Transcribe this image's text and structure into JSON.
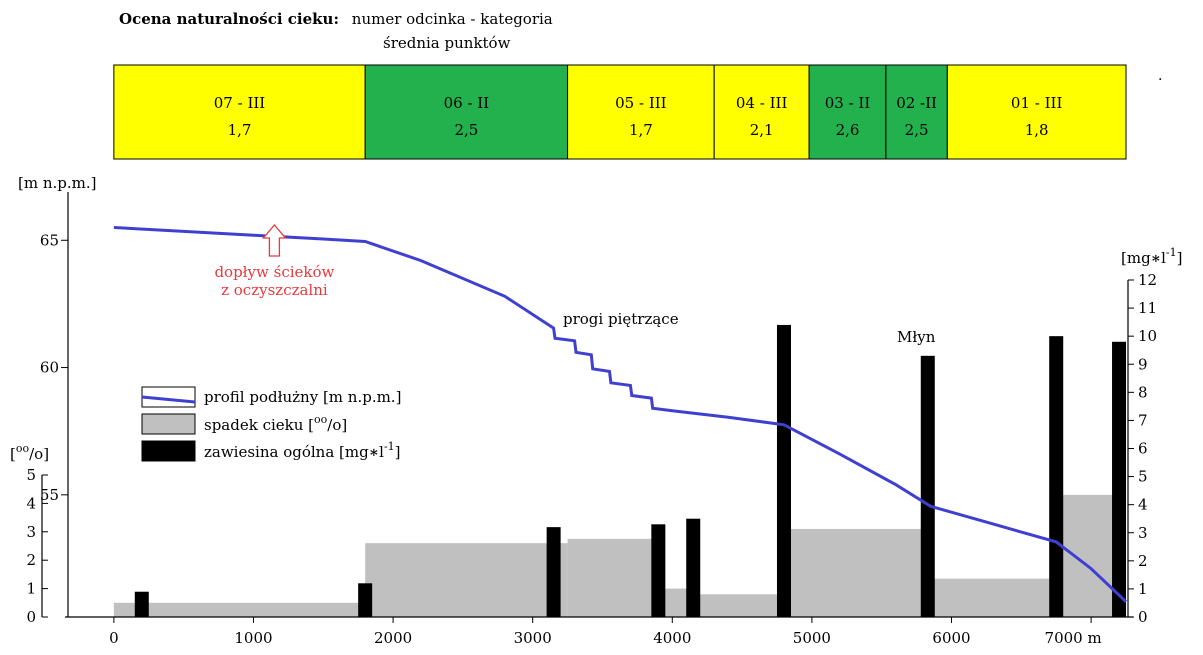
{
  "header": {
    "title": "Ocena naturalności cieku:",
    "legend_line1": "numer odcinka - kategoria",
    "legend_line2": "średnia punktów",
    "trailing_mark": "."
  },
  "colors": {
    "cat_III": "#ffff00",
    "cat_II": "#22b14c",
    "profile": "#4040d0",
    "slope": "#c0c0c0",
    "suspended": "#000000",
    "annotation": "#e8383d"
  },
  "chart_data": {
    "type": "bar",
    "segments": [
      {
        "label": "07 - III",
        "score": "1,7",
        "category": "III",
        "x_start": 0,
        "x_end": 1800
      },
      {
        "label": "06 - II",
        "score": "2,5",
        "category": "II",
        "x_start": 1800,
        "x_end": 3250
      },
      {
        "label": "05 - III",
        "score": "1,7",
        "category": "III",
        "x_start": 3250,
        "x_end": 4300
      },
      {
        "label": "04 - III",
        "score": "2,1",
        "category": "III",
        "x_start": 4300,
        "x_end": 4980
      },
      {
        "label": "03 - II",
        "score": "2,6",
        "category": "II",
        "x_start": 4980,
        "x_end": 5530
      },
      {
        "label": "02 -II",
        "score": "2,5",
        "category": "II",
        "x_start": 5530,
        "x_end": 5970
      },
      {
        "label": "01 - III",
        "score": "1,8",
        "category": "III",
        "x_start": 5970,
        "x_end": 7250
      }
    ],
    "x_axis": {
      "ticks": [
        0,
        1000,
        2000,
        3000,
        4000,
        5000,
        6000,
        7000
      ],
      "tick_labels": [
        "0",
        "1000",
        "2000",
        "3000",
        "4000",
        "5000",
        "6000",
        "7000 m"
      ],
      "range": [
        -350,
        7300
      ]
    },
    "y_elevation": {
      "label": "[m n.p.m.]",
      "ticks": [
        55,
        60,
        65
      ],
      "range": [
        50.2,
        66.7
      ]
    },
    "y_slope": {
      "label_prefix": "[",
      "label_sup": "oo",
      "label_suffix": "/o]",
      "ticks": [
        0,
        1,
        2,
        3,
        4,
        5
      ],
      "range": [
        0,
        5
      ]
    },
    "y_suspended": {
      "label_prefix": "[mg",
      "label_mid": "l",
      "label_sup": "-1",
      "label_suffix": "]",
      "ticks": [
        0,
        1,
        2,
        3,
        4,
        5,
        6,
        7,
        8,
        9,
        10,
        11,
        12
      ],
      "range": [
        0,
        12
      ]
    },
    "series": [
      {
        "name": "profil podłużny [m n.p.m.]",
        "kind": "line",
        "points": [
          [
            0,
            65.5
          ],
          [
            500,
            65.35
          ],
          [
            1000,
            65.2
          ],
          [
            1500,
            65.05
          ],
          [
            1800,
            64.95
          ],
          [
            2200,
            64.2
          ],
          [
            2800,
            62.8
          ],
          [
            3150,
            61.55
          ],
          [
            3160,
            61.15
          ],
          [
            3300,
            61.05
          ],
          [
            3310,
            60.6
          ],
          [
            3420,
            60.5
          ],
          [
            3430,
            59.95
          ],
          [
            3550,
            59.85
          ],
          [
            3560,
            59.4
          ],
          [
            3700,
            59.3
          ],
          [
            3710,
            58.9
          ],
          [
            3850,
            58.8
          ],
          [
            3860,
            58.4
          ],
          [
            4000,
            58.3
          ],
          [
            4400,
            58.05
          ],
          [
            4800,
            57.75
          ],
          [
            5200,
            56.6
          ],
          [
            5600,
            55.4
          ],
          [
            5850,
            54.55
          ],
          [
            6300,
            53.85
          ],
          [
            6750,
            53.15
          ],
          [
            7000,
            52.1
          ],
          [
            7250,
            50.8
          ]
        ]
      },
      {
        "name": "spadek cieku",
        "kind": "bar",
        "bars": [
          [
            0,
            1800,
            0.5
          ],
          [
            1800,
            3250,
            2.6
          ],
          [
            3250,
            3900,
            2.75
          ],
          [
            3900,
            4150,
            1.0
          ],
          [
            4150,
            4800,
            0.8
          ],
          [
            4800,
            5850,
            3.1
          ],
          [
            5850,
            6700,
            1.35
          ],
          [
            6700,
            7250,
            4.3
          ]
        ]
      },
      {
        "name": "zawiesina ogólna",
        "kind": "bar",
        "bars": [
          [
            200,
            0.9
          ],
          [
            1800,
            1.2
          ],
          [
            3150,
            3.2
          ],
          [
            3900,
            3.3
          ],
          [
            4150,
            3.5
          ],
          [
            4800,
            10.4
          ],
          [
            5830,
            9.3
          ],
          [
            6750,
            10.0
          ],
          [
            7200,
            9.8
          ]
        ]
      }
    ],
    "legend": {
      "profile": "profil podłużny [m n.p.m.]",
      "slope_prefix": "spadek cieku [",
      "slope_sup": "oo",
      "slope_suffix": "/o]",
      "suspended_prefix": "zawiesina ogólna [mg",
      "suspended_mid": "l",
      "suspended_sup": "-1",
      "suspended_suffix": "]"
    },
    "annotations": {
      "outflow_line1": "dopływ ścieków",
      "outflow_line2": "z oczyszczalni",
      "outflow_x": 1150,
      "weirs": "progi piętrzące",
      "mill": "Młyn"
    }
  }
}
